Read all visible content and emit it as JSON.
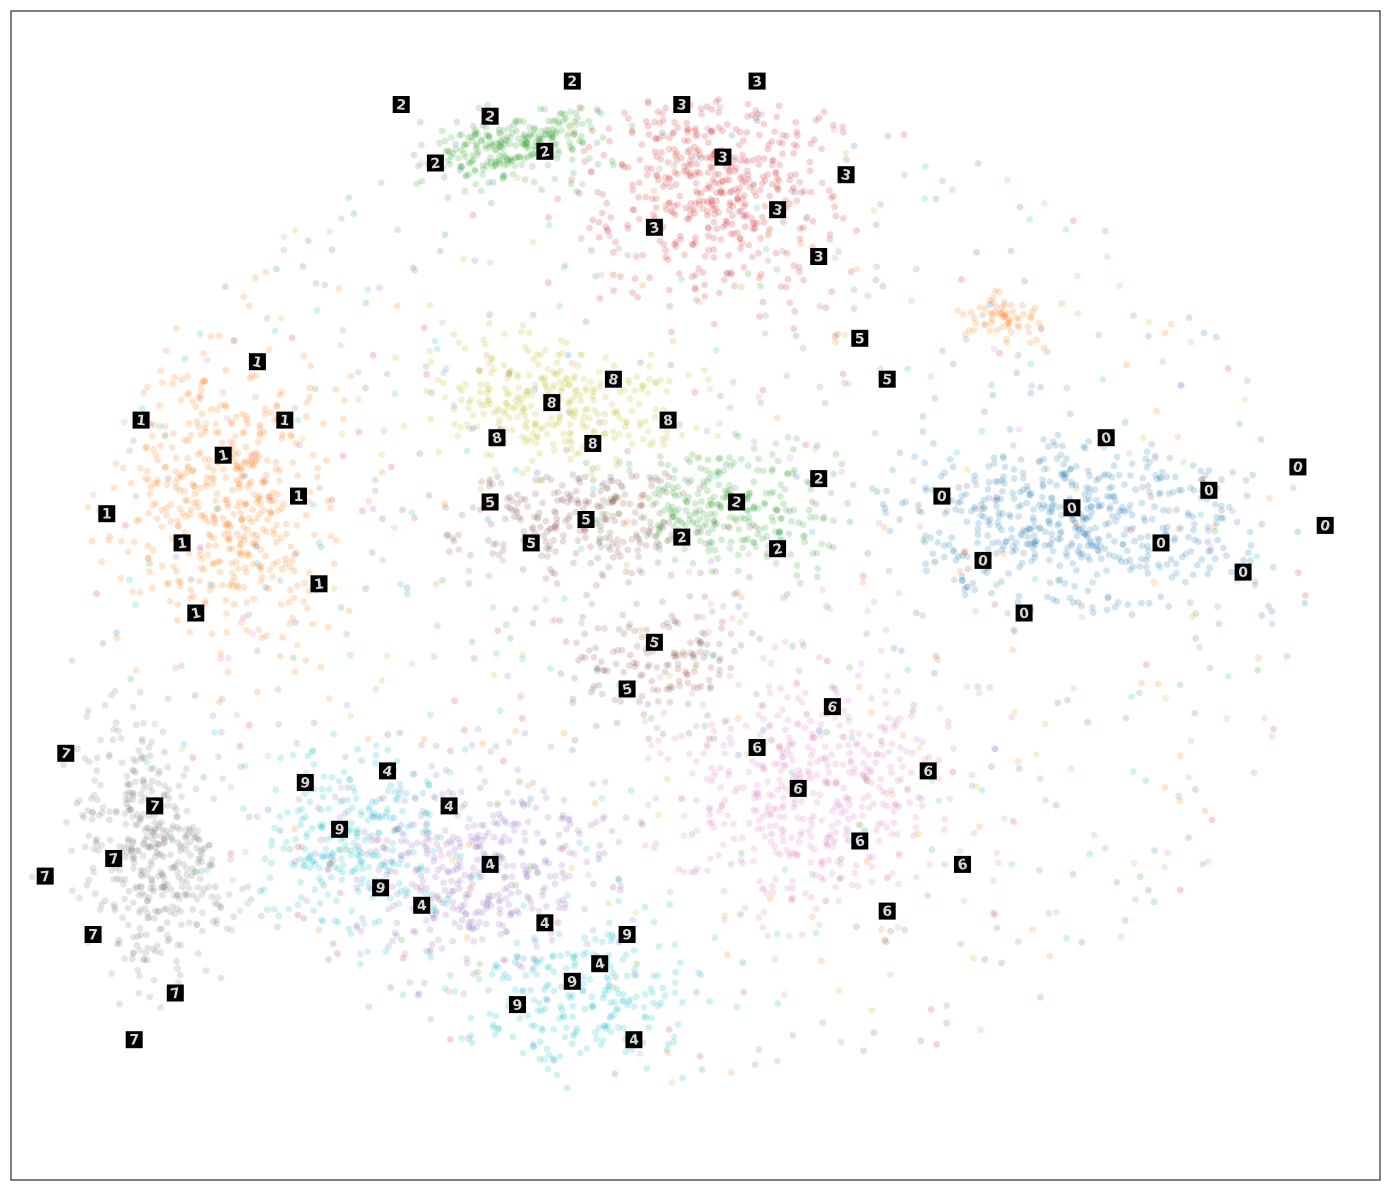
{
  "chart_data": {
    "type": "scatter",
    "title": "",
    "xlabel": "",
    "ylabel": "",
    "grid": false,
    "legend": "none",
    "axes_ticks": "hidden",
    "x_range": [
      -100,
      100
    ],
    "y_range": [
      -100,
      100
    ],
    "point_alpha": 0.2,
    "marker": "circle",
    "annotation_style": "black square thumbnails showing handwritten digit images",
    "class_colors": {
      "0": "#1f77b4",
      "1": "#ff7f0e",
      "2": "#2ca02c",
      "3": "#d62728",
      "4": "#9467bd",
      "5": "#8c564b",
      "6": "#e377c2",
      "7": "#7f7f7f",
      "8": "#bcbd22",
      "9": "#17becf"
    },
    "clusters": [
      {
        "label": "0",
        "center": [
          55,
          12
        ],
        "spread": [
          23,
          13
        ],
        "count": 520
      },
      {
        "label": "1",
        "center": [
          -68,
          17
        ],
        "spread": [
          13,
          22
        ],
        "count": 480
      },
      {
        "label": "1",
        "center": [
          45,
          48
        ],
        "spread": [
          5,
          4
        ],
        "count": 60
      },
      {
        "label": "2",
        "center": [
          -28,
          80
        ],
        "spread": [
          12,
          9
        ],
        "count": 260
      },
      {
        "label": "2",
        "center": [
          4,
          15
        ],
        "spread": [
          16,
          11
        ],
        "count": 280
      },
      {
        "label": "3",
        "center": [
          3,
          70
        ],
        "spread": [
          15,
          16
        ],
        "count": 450
      },
      {
        "label": "4",
        "center": [
          -32,
          -47
        ],
        "spread": [
          19,
          15
        ],
        "count": 380
      },
      {
        "label": "5",
        "center": [
          -17,
          13
        ],
        "spread": [
          18,
          8
        ],
        "count": 240
      },
      {
        "label": "5",
        "center": [
          -6,
          -10
        ],
        "spread": [
          12,
          10
        ],
        "count": 150
      },
      {
        "label": "6",
        "center": [
          17,
          -34
        ],
        "spread": [
          19,
          20
        ],
        "count": 460
      },
      {
        "label": "7",
        "center": [
          -85,
          -47
        ],
        "spread": [
          12,
          22
        ],
        "count": 440
      },
      {
        "label": "8",
        "center": [
          -20,
          33
        ],
        "spread": [
          17,
          10
        ],
        "count": 300
      },
      {
        "label": "9",
        "center": [
          -50,
          -42
        ],
        "spread": [
          13,
          14
        ],
        "count": 260
      },
      {
        "label": "9",
        "center": [
          -17,
          -68
        ],
        "spread": [
          16,
          12
        ],
        "count": 220
      }
    ],
    "thumbnails": [
      {
        "x": 55,
        "y": 15,
        "digit": "0"
      },
      {
        "x": 75,
        "y": 18,
        "digit": "0"
      },
      {
        "x": 68,
        "y": 9,
        "digit": "0"
      },
      {
        "x": 42,
        "y": 6,
        "digit": "0"
      },
      {
        "x": 88,
        "y": 22,
        "digit": "0"
      },
      {
        "x": 60,
        "y": 27,
        "digit": "0"
      },
      {
        "x": 48,
        "y": -3,
        "digit": "0"
      },
      {
        "x": 80,
        "y": 4,
        "digit": "0"
      },
      {
        "x": 36,
        "y": 17,
        "digit": "0"
      },
      {
        "x": 92,
        "y": 12,
        "digit": "0"
      },
      {
        "x": -69,
        "y": 24,
        "digit": "1"
      },
      {
        "x": -75,
        "y": 9,
        "digit": "1"
      },
      {
        "x": -58,
        "y": 17,
        "digit": "1"
      },
      {
        "x": -81,
        "y": 30,
        "digit": "1"
      },
      {
        "x": -64,
        "y": 40,
        "digit": "1"
      },
      {
        "x": -73,
        "y": -3,
        "digit": "1"
      },
      {
        "x": -55,
        "y": 2,
        "digit": "1"
      },
      {
        "x": -86,
        "y": 14,
        "digit": "1"
      },
      {
        "x": -60,
        "y": 30,
        "digit": "1"
      },
      {
        "x": -30,
        "y": 82,
        "digit": "2"
      },
      {
        "x": -22,
        "y": 76,
        "digit": "2"
      },
      {
        "x": -38,
        "y": 74,
        "digit": "2"
      },
      {
        "x": -18,
        "y": 88,
        "digit": "2"
      },
      {
        "x": -43,
        "y": 84,
        "digit": "2"
      },
      {
        "x": 6,
        "y": 16,
        "digit": "2"
      },
      {
        "x": 12,
        "y": 8,
        "digit": "2"
      },
      {
        "x": -2,
        "y": 10,
        "digit": "2"
      },
      {
        "x": 18,
        "y": 20,
        "digit": "2"
      },
      {
        "x": 4,
        "y": 75,
        "digit": "3"
      },
      {
        "x": 12,
        "y": 66,
        "digit": "3"
      },
      {
        "x": -6,
        "y": 63,
        "digit": "3"
      },
      {
        "x": 9,
        "y": 88,
        "digit": "3"
      },
      {
        "x": 18,
        "y": 58,
        "digit": "3"
      },
      {
        "x": -2,
        "y": 84,
        "digit": "3"
      },
      {
        "x": 22,
        "y": 72,
        "digit": "3"
      },
      {
        "x": -30,
        "y": -46,
        "digit": "4"
      },
      {
        "x": -40,
        "y": -53,
        "digit": "4"
      },
      {
        "x": -22,
        "y": -56,
        "digit": "4"
      },
      {
        "x": -36,
        "y": -36,
        "digit": "4"
      },
      {
        "x": -45,
        "y": -30,
        "digit": "4"
      },
      {
        "x": -14,
        "y": -63,
        "digit": "4"
      },
      {
        "x": -9,
        "y": -76,
        "digit": "4"
      },
      {
        "x": -16,
        "y": 13,
        "digit": "5"
      },
      {
        "x": -24,
        "y": 9,
        "digit": "5"
      },
      {
        "x": -6,
        "y": -8,
        "digit": "5"
      },
      {
        "x": -10,
        "y": -16,
        "digit": "5"
      },
      {
        "x": -30,
        "y": 16,
        "digit": "5"
      },
      {
        "x": 24,
        "y": 44,
        "digit": "5"
      },
      {
        "x": 28,
        "y": 37,
        "digit": "5"
      },
      {
        "x": 15,
        "y": -33,
        "digit": "6"
      },
      {
        "x": 24,
        "y": -42,
        "digit": "6"
      },
      {
        "x": 9,
        "y": -26,
        "digit": "6"
      },
      {
        "x": 28,
        "y": -54,
        "digit": "6"
      },
      {
        "x": 34,
        "y": -30,
        "digit": "6"
      },
      {
        "x": 20,
        "y": -19,
        "digit": "6"
      },
      {
        "x": 39,
        "y": -46,
        "digit": "6"
      },
      {
        "x": -85,
        "y": -45,
        "digit": "7"
      },
      {
        "x": -88,
        "y": -58,
        "digit": "7"
      },
      {
        "x": -79,
        "y": -36,
        "digit": "7"
      },
      {
        "x": -92,
        "y": -27,
        "digit": "7"
      },
      {
        "x": -76,
        "y": -68,
        "digit": "7"
      },
      {
        "x": -95,
        "y": -48,
        "digit": "7"
      },
      {
        "x": -82,
        "y": -76,
        "digit": "7"
      },
      {
        "x": -21,
        "y": 33,
        "digit": "8"
      },
      {
        "x": -12,
        "y": 37,
        "digit": "8"
      },
      {
        "x": -29,
        "y": 27,
        "digit": "8"
      },
      {
        "x": -4,
        "y": 30,
        "digit": "8"
      },
      {
        "x": -15,
        "y": 26,
        "digit": "8"
      },
      {
        "x": -52,
        "y": -40,
        "digit": "9"
      },
      {
        "x": -46,
        "y": -50,
        "digit": "9"
      },
      {
        "x": -18,
        "y": -66,
        "digit": "9"
      },
      {
        "x": -26,
        "y": -70,
        "digit": "9"
      },
      {
        "x": -10,
        "y": -58,
        "digit": "9"
      },
      {
        "x": -57,
        "y": -32,
        "digit": "9"
      }
    ]
  }
}
